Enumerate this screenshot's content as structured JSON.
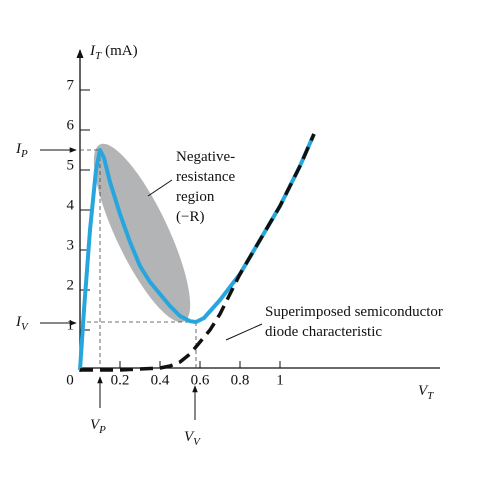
{
  "chart_data": {
    "type": "line",
    "y_label": {
      "symbol": "I",
      "subscript": "T",
      "unit": "(mA)"
    },
    "x_label": {
      "symbol": "V",
      "subscript": "T"
    },
    "xlim": [
      0,
      1.8
    ],
    "ylim": [
      0,
      8.1
    ],
    "xticks": [
      0,
      0.2,
      0.4,
      0.6,
      0.8,
      1
    ],
    "yticks": [
      1,
      2,
      3,
      4,
      5,
      6,
      7
    ],
    "series": [
      {
        "color": "#27a6de",
        "dashed": false,
        "x": [
          0,
          0.02,
          0.05,
          0.08,
          0.1,
          0.12,
          0.15,
          0.2,
          0.25,
          0.3,
          0.35,
          0.4,
          0.45,
          0.5,
          0.55,
          0.58,
          0.62,
          0.7,
          0.8,
          0.9,
          1.0,
          1.1,
          1.17
        ],
        "values": [
          0,
          1.5,
          3.5,
          5.0,
          5.5,
          5.3,
          4.7,
          3.9,
          3.2,
          2.6,
          2.2,
          1.9,
          1.6,
          1.35,
          1.22,
          1.2,
          1.3,
          1.75,
          2.4,
          3.25,
          4.1,
          5.1,
          5.9
        ]
      },
      {
        "color": "#111111",
        "dashed": true,
        "x": [
          0,
          0.2,
          0.4,
          0.45,
          0.5,
          0.55,
          0.6,
          0.65,
          0.7,
          0.75,
          0.8,
          0.9,
          1.0,
          1.1,
          1.17
        ],
        "values": [
          0,
          0,
          0.05,
          0.1,
          0.2,
          0.4,
          0.7,
          1.0,
          1.4,
          1.9,
          2.4,
          3.25,
          4.1,
          5.1,
          5.9
        ]
      }
    ],
    "peak_label": {
      "symbol": "I",
      "subscript": "P"
    },
    "valley_label": {
      "symbol": "I",
      "subscript": "V"
    },
    "peak_voltage_label": {
      "symbol": "V",
      "subscript": "P"
    },
    "valley_voltage_label": {
      "symbol": "V",
      "subscript": "V"
    },
    "region_annotation": [
      "Negative-",
      "resistance",
      "region",
      "(−R)"
    ],
    "diode_annotation": [
      "Superimposed semiconductor",
      "diode characteristic"
    ]
  }
}
